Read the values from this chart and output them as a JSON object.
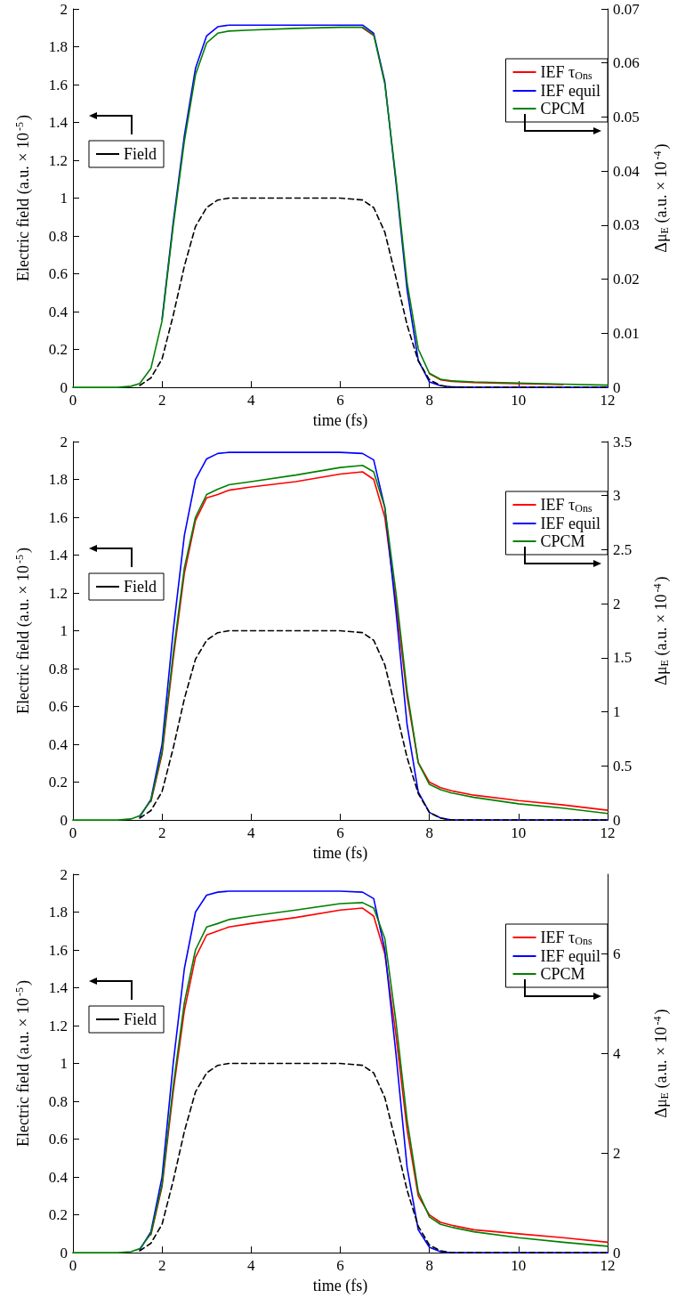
{
  "chart_data": [
    {
      "type": "line",
      "xlabel": "time (fs)",
      "ylabel": "Electric field (a.u. × 10$^{-5}$)",
      "y2label": "Δμ$_{E}$ (a.u. × 10$^{-4}$)",
      "legend": "top right",
      "grid": false,
      "marker": "none",
      "x": [
        0,
        1,
        1.3,
        1.5,
        1.75,
        2,
        2.25,
        2.5,
        2.75,
        3,
        3.25,
        3.5,
        4,
        5,
        6,
        6.5,
        6.75,
        7,
        7.25,
        7.5,
        7.75,
        8,
        8.25,
        8.5,
        9,
        10,
        11,
        12
      ],
      "xlim": [
        0,
        12
      ],
      "xticks": [
        0,
        2,
        4,
        6,
        8,
        10,
        12
      ],
      "ylim": [
        0,
        2
      ],
      "yticks": [
        0,
        0.2,
        0.4,
        0.6,
        0.8,
        1,
        1.2,
        1.4,
        1.6,
        1.8,
        2
      ],
      "y2lim": [
        0,
        0.07
      ],
      "y2ticks": [
        0,
        0.01,
        0.02,
        0.03,
        0.04,
        0.05,
        0.06,
        0.07
      ],
      "series": [
        {
          "name": "IEF τ$_{Ons}$",
          "color": "#ff0000",
          "axis": "y2",
          "line_style": "solid",
          "values": [
            null,
            null,
            null,
            null,
            null,
            null,
            null,
            null,
            null,
            null,
            null,
            null,
            null,
            null,
            null,
            0.0665,
            0.0651,
            null,
            null,
            null,
            null,
            0.0025,
            0.0014,
            0.0011,
            0.0009,
            0.0007,
            0.0005,
            null
          ]
        },
        {
          "name": "IEF equil",
          "color": "#0000ff",
          "axis": "y2",
          "line_style": "solid",
          "values": [
            null,
            null,
            null,
            null,
            null,
            0.0126,
            0.0305,
            0.0465,
            0.059,
            0.065,
            0.0667,
            0.067,
            0.067,
            0.067,
            0.067,
            0.067,
            0.0655,
            0.0565,
            0.038,
            0.018,
            0.005,
            0.001,
            0.0003,
            0.0001,
            0,
            0,
            0,
            0
          ]
        },
        {
          "name": "CPCM",
          "color": "#008000",
          "axis": "y2",
          "line_style": "solid",
          "values": [
            0,
            0,
            0.0002,
            0.0007,
            0.0035,
            0.0123,
            0.0298,
            0.0455,
            0.0578,
            0.0637,
            0.0655,
            0.0659,
            0.0661,
            0.0664,
            0.0666,
            0.0666,
            0.0652,
            0.0561,
            0.0386,
            0.0194,
            0.0071,
            0.0026,
            0.0015,
            0.0012,
            0.001,
            0.0008,
            0.0006,
            0.0004
          ]
        },
        {
          "name": "Field",
          "color": "#000000",
          "axis": "y",
          "line_style": "dashed",
          "values": [
            null,
            null,
            null,
            0.01,
            0.05,
            0.15,
            0.38,
            0.64,
            0.85,
            0.95,
            0.99,
            1,
            1,
            1,
            1,
            0.99,
            0.95,
            0.82,
            0.58,
            0.33,
            0.14,
            0.04,
            0.01,
            0,
            0,
            0,
            0,
            0
          ]
        }
      ]
    },
    {
      "type": "line",
      "xlabel": "time (fs)",
      "ylabel": "Electric field (a.u. × 10$^{-5}$)",
      "y2label": "Δμ$_{E}$ (a.u. × 10$^{-4}$)",
      "legend": "top right",
      "grid": false,
      "marker": "none",
      "x": [
        0,
        1,
        1.3,
        1.5,
        1.75,
        2,
        2.25,
        2.5,
        2.75,
        3,
        3.25,
        3.5,
        4,
        5,
        6,
        6.5,
        6.75,
        7,
        7.25,
        7.5,
        7.75,
        8,
        8.25,
        8.5,
        9,
        10,
        11,
        12
      ],
      "xlim": [
        0,
        12
      ],
      "xticks": [
        0,
        2,
        4,
        6,
        8,
        10,
        12
      ],
      "ylim": [
        0,
        2
      ],
      "yticks": [
        0,
        0.2,
        0.4,
        0.6,
        0.8,
        1,
        1.2,
        1.4,
        1.6,
        1.8,
        2
      ],
      "y2lim": [
        0,
        3.5
      ],
      "y2ticks": [
        0,
        0.5,
        1,
        1.5,
        2,
        2.5,
        3,
        3.5
      ],
      "series": [
        {
          "name": "IEF τ$_{Ons}$",
          "color": "#ff0000",
          "axis": "y2",
          "line_style": "solid",
          "values": [
            null,
            null,
            null,
            null,
            0.17,
            0.61,
            1.49,
            2.28,
            2.77,
            2.98,
            3.01,
            3.05,
            3.08,
            3.13,
            3.2,
            3.22,
            3.15,
            2.8,
            2.01,
            1.14,
            0.53,
            0.35,
            0.3,
            0.27,
            0.23,
            0.18,
            0.14,
            0.09
          ]
        },
        {
          "name": "IEF equil",
          "color": "#0000ff",
          "axis": "y2",
          "line_style": "solid",
          "values": [
            null,
            null,
            null,
            0.03,
            0.19,
            0.7,
            1.75,
            2.63,
            3.15,
            3.34,
            3.39,
            3.4,
            3.4,
            3.4,
            3.4,
            3.39,
            3.33,
            2.89,
            1.93,
            0.88,
            0.26,
            0.07,
            0.02,
            0,
            0,
            0,
            0,
            0
          ]
        },
        {
          "name": "CPCM",
          "color": "#008000",
          "axis": "y2",
          "line_style": "solid",
          "values": [
            0,
            0,
            0.01,
            0.04,
            0.18,
            0.63,
            1.54,
            2.33,
            2.8,
            3.01,
            3.06,
            3.1,
            3.13,
            3.19,
            3.26,
            3.28,
            3.22,
            2.89,
            2.1,
            1.19,
            0.53,
            0.33,
            0.28,
            0.25,
            0.21,
            0.15,
            0.11,
            0.06
          ]
        },
        {
          "name": "Field",
          "color": "#000000",
          "axis": "y",
          "line_style": "dashed",
          "values": [
            null,
            null,
            null,
            0.01,
            0.05,
            0.15,
            0.38,
            0.64,
            0.85,
            0.95,
            0.99,
            1,
            1,
            1,
            1,
            0.99,
            0.95,
            0.82,
            0.58,
            0.33,
            0.14,
            0.04,
            0.01,
            0,
            0,
            0,
            0,
            0
          ]
        }
      ]
    },
    {
      "type": "line",
      "xlabel": "time (fs)",
      "ylabel": "Electric field (a.u. × 10$^{-5}$)",
      "y2label": "Δμ$_{E}$ (a.u. × 10$^{-4}$)",
      "legend": "top right",
      "grid": false,
      "marker": "none",
      "x": [
        0,
        1,
        1.3,
        1.5,
        1.75,
        2,
        2.25,
        2.5,
        2.75,
        3,
        3.25,
        3.5,
        4,
        5,
        6,
        6.5,
        6.75,
        7,
        7.25,
        7.5,
        7.75,
        8,
        8.25,
        8.5,
        9,
        10,
        11,
        12
      ],
      "xlim": [
        0,
        12
      ],
      "xticks": [
        0,
        2,
        4,
        6,
        8,
        10,
        12
      ],
      "ylim": [
        0,
        2
      ],
      "yticks": [
        0,
        0.2,
        0.4,
        0.6,
        0.8,
        1,
        1.2,
        1.4,
        1.6,
        1.8,
        2
      ],
      "y2lim": [
        0,
        7.6
      ],
      "y2ticks": [
        0,
        2,
        4,
        6
      ],
      "series": [
        {
          "name": "IEF τ$_{Ons}$",
          "color": "#ff0000",
          "axis": "y2",
          "line_style": "solid",
          "values": [
            null,
            null,
            null,
            null,
            0.36,
            1.33,
            3.23,
            4.86,
            5.93,
            6.38,
            6.46,
            6.54,
            6.61,
            6.73,
            6.88,
            6.92,
            6.76,
            6.0,
            4.37,
            2.47,
            1.14,
            0.76,
            0.61,
            0.55,
            0.46,
            0.38,
            0.3,
            0.21
          ]
        },
        {
          "name": "IEF equil",
          "color": "#0000ff",
          "axis": "y2",
          "line_style": "solid",
          "values": [
            null,
            null,
            null,
            0.06,
            0.42,
            1.52,
            3.8,
            5.7,
            6.84,
            7.18,
            7.24,
            7.26,
            7.26,
            7.26,
            7.26,
            7.24,
            7.11,
            6.08,
            3.99,
            1.71,
            0.46,
            0.11,
            0.02,
            0,
            0,
            0,
            0,
            0
          ]
        },
        {
          "name": "CPCM",
          "color": "#008000",
          "axis": "y2",
          "line_style": "solid",
          "values": [
            0,
            0,
            0.02,
            0.08,
            0.38,
            1.37,
            3.34,
            5.02,
            6.08,
            6.54,
            6.61,
            6.69,
            6.76,
            6.88,
            7.01,
            7.03,
            6.92,
            6.31,
            4.64,
            2.66,
            1.22,
            0.72,
            0.57,
            0.51,
            0.42,
            0.3,
            0.21,
            0.13
          ]
        },
        {
          "name": "Field",
          "color": "#000000",
          "axis": "y",
          "line_style": "dashed",
          "values": [
            null,
            null,
            null,
            0.01,
            0.05,
            0.15,
            0.38,
            0.64,
            0.85,
            0.95,
            0.99,
            1,
            1,
            1,
            1,
            0.99,
            0.95,
            0.82,
            0.58,
            0.33,
            0.14,
            0.04,
            0.01,
            0,
            0,
            0,
            0,
            0
          ]
        }
      ]
    }
  ]
}
